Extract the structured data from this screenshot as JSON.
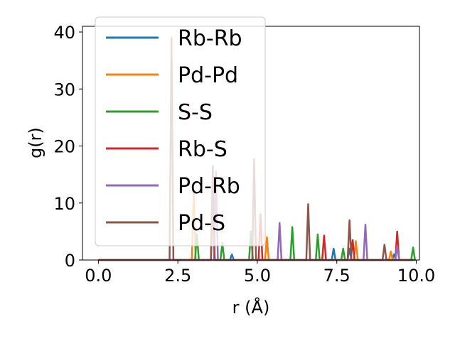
{
  "chart_data": {
    "type": "line",
    "xlabel": "r (Å)",
    "ylabel": "g(r)",
    "xlim": [
      -0.5,
      10.1
    ],
    "ylim": [
      0,
      41
    ],
    "xticks": [
      0.0,
      2.5,
      5.0,
      7.5,
      10.0
    ],
    "xtick_labels": [
      "0.0",
      "2.5",
      "5.0",
      "7.5",
      "10.0"
    ],
    "yticks": [
      0,
      10,
      20,
      30,
      40
    ],
    "ytick_labels": [
      "0",
      "10",
      "20",
      "30",
      "40"
    ],
    "grid": false,
    "legend_position": "upper-left",
    "series": [
      {
        "name": "Rb-Rb",
        "color": "#1f77b4",
        "peaks": [
          [
            4.2,
            1.0
          ],
          [
            7.4,
            2.0
          ],
          [
            7.9,
            2.0
          ],
          [
            9.3,
            1.0
          ]
        ]
      },
      {
        "name": "Pd-Pd",
        "color": "#ff7f0e",
        "peaks": [
          [
            3.0,
            12.0
          ],
          [
            3.6,
            10.0
          ],
          [
            5.3,
            4.0
          ],
          [
            8.1,
            3.3
          ],
          [
            9.2,
            1.5
          ]
        ]
      },
      {
        "name": "S-S",
        "color": "#2ca02c",
        "peaks": [
          [
            3.1,
            4.5
          ],
          [
            3.9,
            3.0
          ],
          [
            4.8,
            5.0
          ],
          [
            6.1,
            5.8
          ],
          [
            6.9,
            4.5
          ],
          [
            7.7,
            2.0
          ],
          [
            9.9,
            2.2
          ]
        ]
      },
      {
        "name": "Rb-S",
        "color": "#d62728",
        "peaks": [
          [
            3.6,
            13.0
          ],
          [
            5.1,
            8.0
          ],
          [
            7.1,
            4.3
          ],
          [
            8.0,
            3.5
          ],
          [
            9.4,
            5.0
          ]
        ]
      },
      {
        "name": "Pd-Rb",
        "color": "#9467bd",
        "peaks": [
          [
            3.7,
            15.5
          ],
          [
            5.7,
            6.5
          ],
          [
            8.4,
            6.2
          ],
          [
            9.4,
            2.5
          ]
        ]
      },
      {
        "name": "Pd-S",
        "color": "#8c564b",
        "peaks": [
          [
            2.3,
            39.0
          ],
          [
            3.6,
            16.5
          ],
          [
            4.9,
            17.7
          ],
          [
            6.6,
            9.8
          ],
          [
            7.9,
            7.0
          ],
          [
            9.0,
            2.7
          ]
        ]
      }
    ]
  }
}
